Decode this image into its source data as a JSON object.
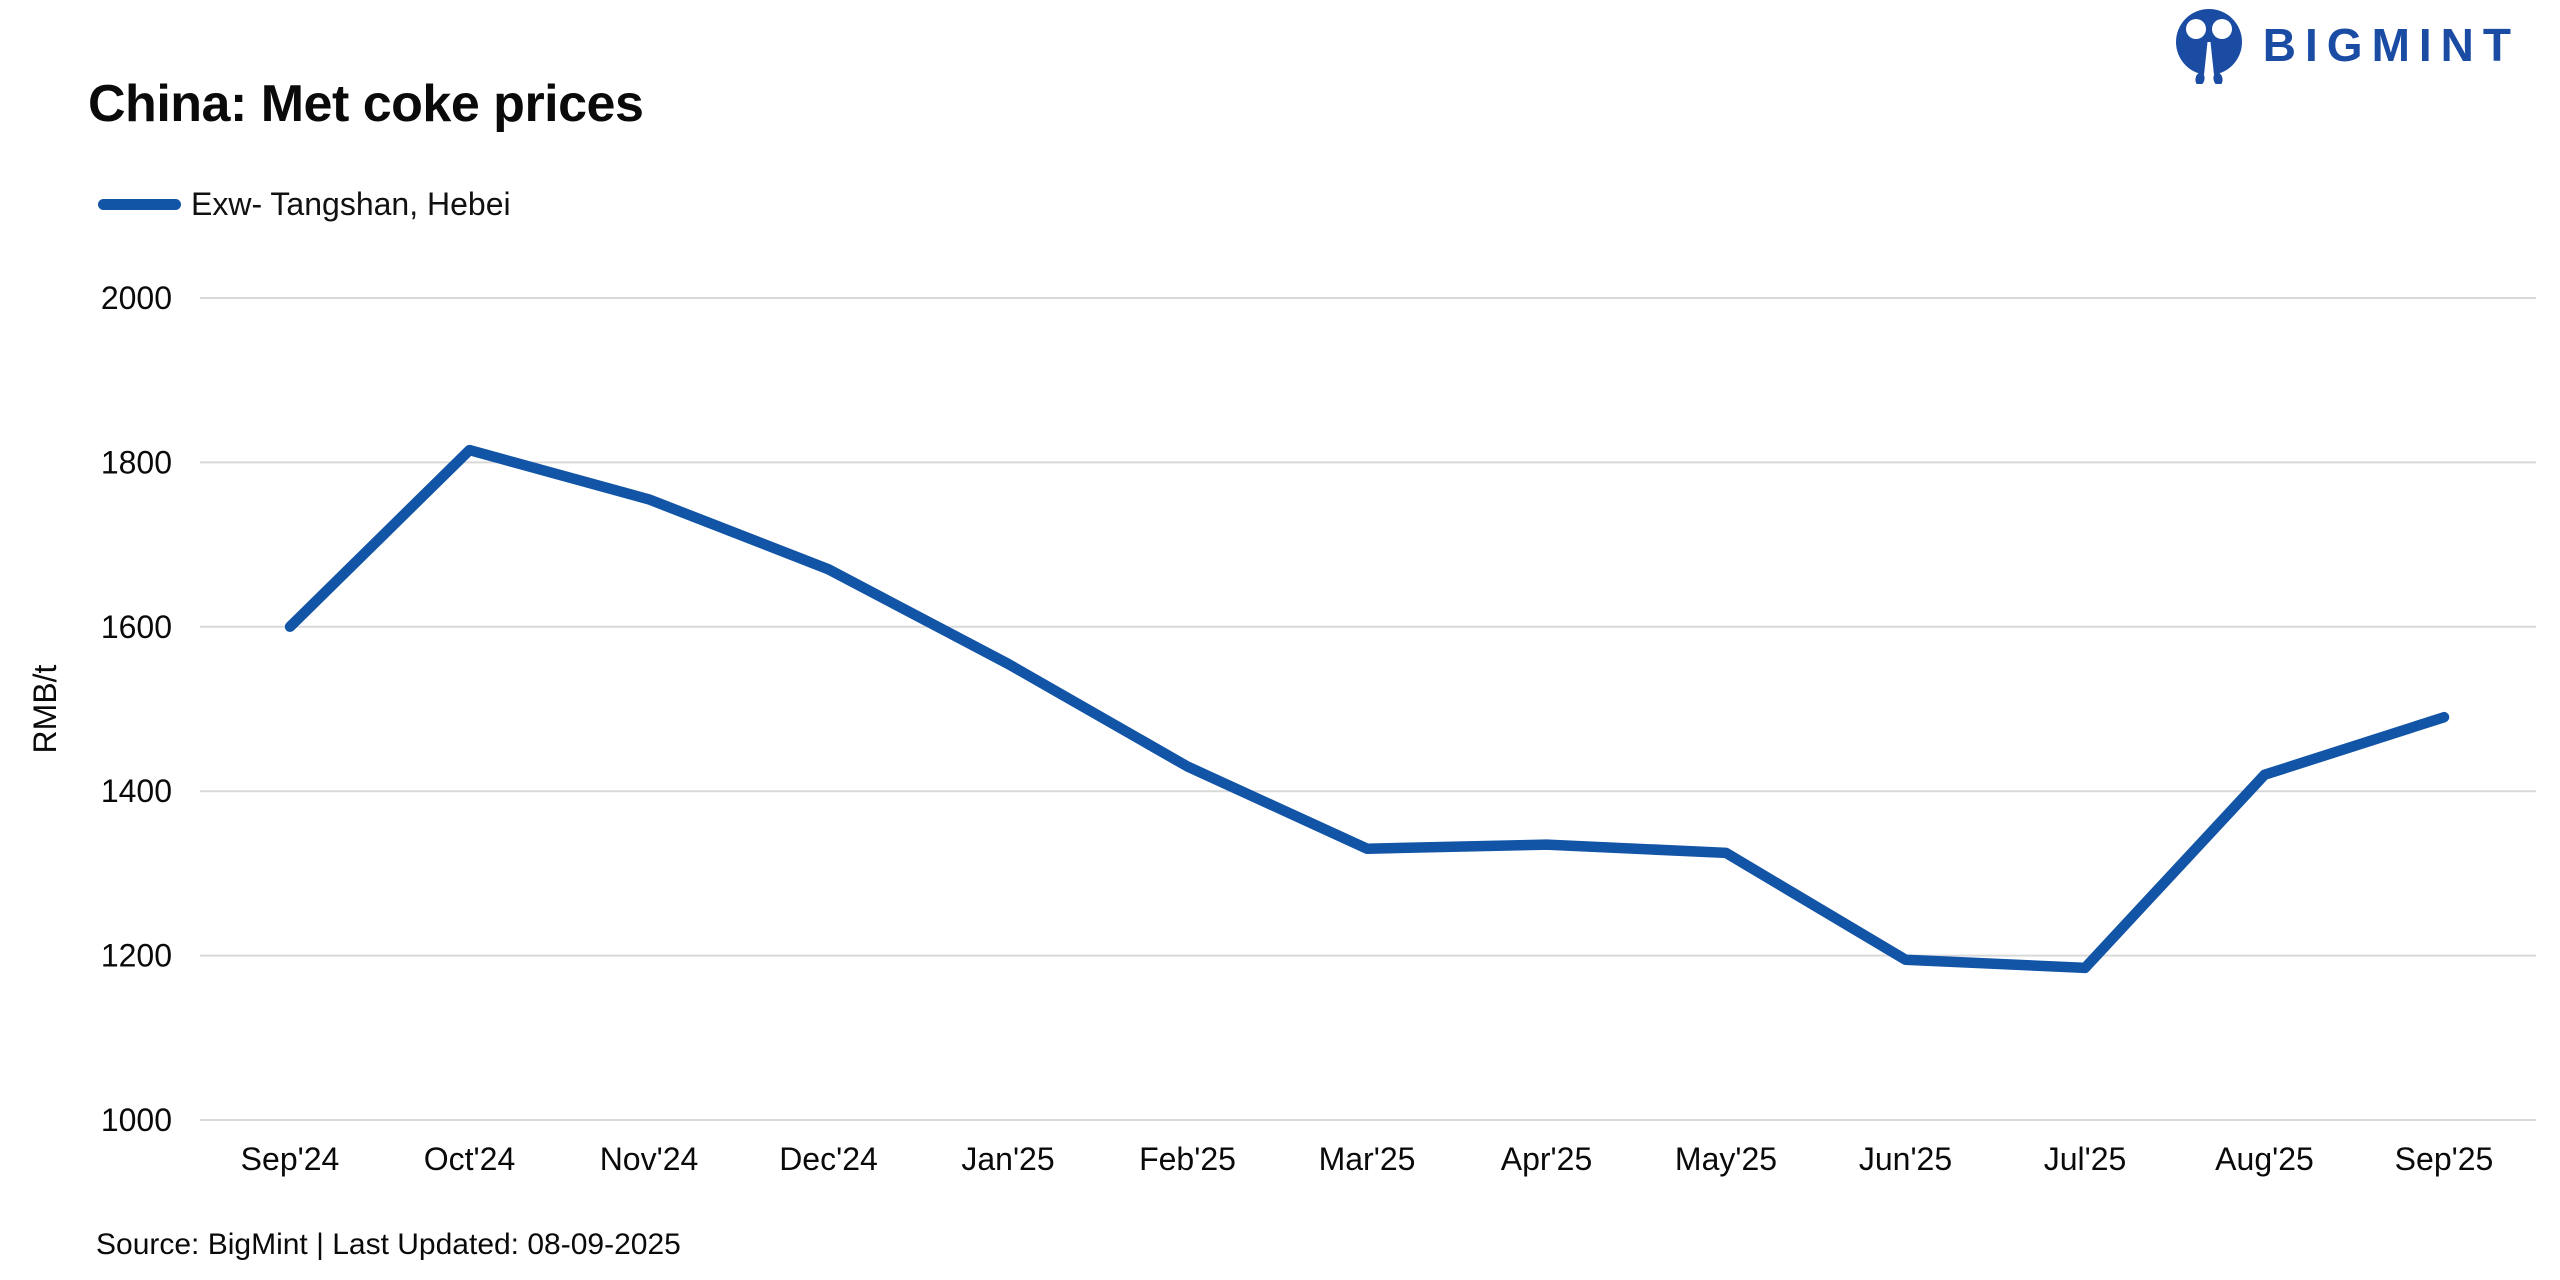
{
  "header": {
    "title": "China: Met coke prices",
    "logo_text": "BIGMINT"
  },
  "footer": {
    "source_text": "Source: BigMint | Last Updated: 08-09-2025"
  },
  "chart_data": {
    "type": "line",
    "title": "China: Met coke prices",
    "xlabel": "",
    "ylabel": "RMB/t",
    "categories": [
      "Sep'24",
      "Oct'24",
      "Nov'24",
      "Dec'24",
      "Jan'25",
      "Feb'25",
      "Mar'25",
      "Apr'25",
      "May'25",
      "Jun'25",
      "Jul'25",
      "Aug'25",
      "Sep'25"
    ],
    "series": [
      {
        "name": "Exw- Tangshan, Hebei",
        "values": [
          1600,
          1815,
          1755,
          1670,
          1555,
          1430,
          1330,
          1335,
          1325,
          1195,
          1185,
          1420,
          1490
        ]
      }
    ],
    "ylim": [
      1000,
      2000
    ],
    "yticks": [
      1000,
      1200,
      1400,
      1600,
      1800,
      2000
    ],
    "grid": "horizontal-only",
    "legend_position": "top-left",
    "line_color": "#1254a6",
    "gridline_color": "#d9d9d9",
    "axis_text_color": "#0a0a0a"
  },
  "colors": {
    "background": "#ffffff",
    "accent_blue": "#1254a6",
    "logo_blue": "#1b4ca3",
    "gridline": "#d9d9d9",
    "text": "#0a0a0a"
  }
}
